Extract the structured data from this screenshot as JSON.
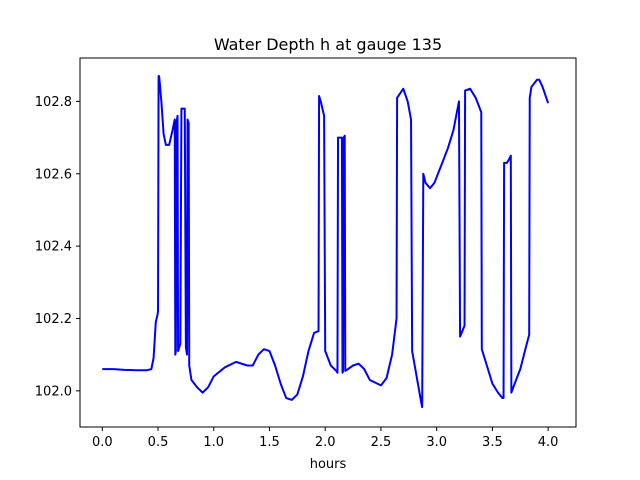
{
  "chart_data": {
    "type": "line",
    "title": "Water Depth h at gauge 135",
    "xlabel": "hours",
    "ylabel": "",
    "xlim": [
      -0.2,
      4.25
    ],
    "ylim": [
      101.9,
      102.92
    ],
    "xticks": [
      0.0,
      0.5,
      1.0,
      1.5,
      2.0,
      2.5,
      3.0,
      3.5,
      4.0
    ],
    "xtick_labels": [
      "0.0",
      "0.5",
      "1.0",
      "1.5",
      "2.0",
      "2.5",
      "3.0",
      "3.5",
      "4.0"
    ],
    "yticks": [
      102.0,
      102.2,
      102.4,
      102.6,
      102.8
    ],
    "ytick_labels": [
      "102.0",
      "102.2",
      "102.4",
      "102.6",
      "102.8"
    ],
    "grid": false,
    "legend": "none",
    "series": [
      {
        "color": "#0000ff",
        "points": [
          [
            0.0,
            102.06
          ],
          [
            0.1,
            102.06
          ],
          [
            0.2,
            102.058
          ],
          [
            0.3,
            102.057
          ],
          [
            0.4,
            102.057
          ],
          [
            0.44,
            102.06
          ],
          [
            0.46,
            102.09
          ],
          [
            0.48,
            102.19
          ],
          [
            0.495,
            102.21
          ],
          [
            0.5,
            102.22
          ],
          [
            0.505,
            102.87
          ],
          [
            0.51,
            102.87
          ],
          [
            0.53,
            102.8
          ],
          [
            0.55,
            102.71
          ],
          [
            0.57,
            102.68
          ],
          [
            0.6,
            102.68
          ],
          [
            0.63,
            102.72
          ],
          [
            0.65,
            102.75
          ],
          [
            0.655,
            102.1
          ],
          [
            0.66,
            102.11
          ],
          [
            0.665,
            102.74
          ],
          [
            0.675,
            102.76
          ],
          [
            0.68,
            102.11
          ],
          [
            0.69,
            102.12
          ],
          [
            0.7,
            102.13
          ],
          [
            0.71,
            102.78
          ],
          [
            0.74,
            102.78
          ],
          [
            0.75,
            102.12
          ],
          [
            0.76,
            102.1
          ],
          [
            0.765,
            102.75
          ],
          [
            0.775,
            102.74
          ],
          [
            0.78,
            102.07
          ],
          [
            0.8,
            102.03
          ],
          [
            0.85,
            102.01
          ],
          [
            0.9,
            101.995
          ],
          [
            0.95,
            102.01
          ],
          [
            1.0,
            102.04
          ],
          [
            1.1,
            102.065
          ],
          [
            1.2,
            102.08
          ],
          [
            1.3,
            102.07
          ],
          [
            1.35,
            102.07
          ],
          [
            1.4,
            102.1
          ],
          [
            1.45,
            102.115
          ],
          [
            1.5,
            102.11
          ],
          [
            1.55,
            102.07
          ],
          [
            1.6,
            102.02
          ],
          [
            1.65,
            101.98
          ],
          [
            1.7,
            101.975
          ],
          [
            1.75,
            101.99
          ],
          [
            1.8,
            102.04
          ],
          [
            1.85,
            102.11
          ],
          [
            1.9,
            102.16
          ],
          [
            1.94,
            102.165
          ],
          [
            1.945,
            102.815
          ],
          [
            1.96,
            102.8
          ],
          [
            1.99,
            102.76
          ],
          [
            2.0,
            102.11
          ],
          [
            2.05,
            102.07
          ],
          [
            2.1,
            102.055
          ],
          [
            2.11,
            102.05
          ],
          [
            2.115,
            102.7
          ],
          [
            2.15,
            102.7
          ],
          [
            2.155,
            102.05
          ],
          [
            2.16,
            102.055
          ],
          [
            2.165,
            102.7
          ],
          [
            2.175,
            102.705
          ],
          [
            2.18,
            102.055
          ],
          [
            2.25,
            102.07
          ],
          [
            2.3,
            102.075
          ],
          [
            2.35,
            102.06
          ],
          [
            2.4,
            102.03
          ],
          [
            2.5,
            102.015
          ],
          [
            2.55,
            102.035
          ],
          [
            2.6,
            102.1
          ],
          [
            2.64,
            102.2
          ],
          [
            2.645,
            102.81
          ],
          [
            2.7,
            102.835
          ],
          [
            2.74,
            102.8
          ],
          [
            2.77,
            102.75
          ],
          [
            2.78,
            102.11
          ],
          [
            2.82,
            102.04
          ],
          [
            2.86,
            101.97
          ],
          [
            2.87,
            101.955
          ],
          [
            2.88,
            102.6
          ],
          [
            2.9,
            102.575
          ],
          [
            2.94,
            102.56
          ],
          [
            2.98,
            102.575
          ],
          [
            3.05,
            102.63
          ],
          [
            3.1,
            102.67
          ],
          [
            3.15,
            102.72
          ],
          [
            3.2,
            102.8
          ],
          [
            3.21,
            102.15
          ],
          [
            3.25,
            102.18
          ],
          [
            3.255,
            102.83
          ],
          [
            3.3,
            102.835
          ],
          [
            3.35,
            102.81
          ],
          [
            3.4,
            102.77
          ],
          [
            3.405,
            102.115
          ],
          [
            3.45,
            102.07
          ],
          [
            3.5,
            102.02
          ],
          [
            3.55,
            101.995
          ],
          [
            3.59,
            101.98
          ],
          [
            3.6,
            101.98
          ],
          [
            3.605,
            102.63
          ],
          [
            3.63,
            102.63
          ],
          [
            3.65,
            102.64
          ],
          [
            3.665,
            102.65
          ],
          [
            3.67,
            101.995
          ],
          [
            3.7,
            102.02
          ],
          [
            3.75,
            102.06
          ],
          [
            3.8,
            102.12
          ],
          [
            3.83,
            102.155
          ],
          [
            3.835,
            102.81
          ],
          [
            3.85,
            102.84
          ],
          [
            3.9,
            102.86
          ],
          [
            3.92,
            102.86
          ],
          [
            3.95,
            102.84
          ],
          [
            4.0,
            102.795
          ]
        ]
      }
    ]
  }
}
